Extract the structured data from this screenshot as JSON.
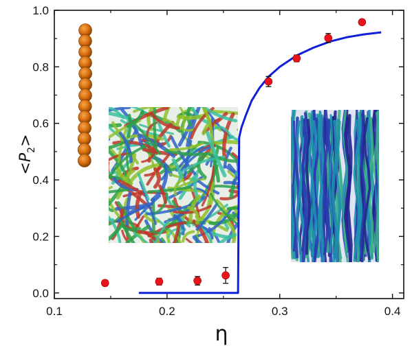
{
  "chart_data": {
    "type": "scatter",
    "xlabel": "η",
    "ylabel_main": "<P",
    "ylabel_sub": "2",
    "ylabel_close": ">",
    "xlim": [
      0.1,
      0.41
    ],
    "ylim": [
      -0.02,
      1.0
    ],
    "x_ticks": [
      0.1,
      0.2,
      0.3,
      0.4
    ],
    "x_tick_labels": [
      "0.1",
      "0.2",
      "0.3",
      "0.4"
    ],
    "y_ticks": [
      0.0,
      0.2,
      0.4,
      0.6,
      0.8,
      1.0
    ],
    "y_tick_labels": [
      "0.0",
      "0.2",
      "0.4",
      "0.6",
      "0.8",
      "1.0"
    ],
    "series": [
      {
        "kind": "points-with-errorbars",
        "color": "#e8141b",
        "x": [
          0.145,
          0.193,
          0.227,
          0.252,
          0.29,
          0.315,
          0.343,
          0.373
        ],
        "y": [
          0.035,
          0.04,
          0.043,
          0.062,
          0.748,
          0.83,
          0.902,
          0.958
        ],
        "yerr": [
          0.01,
          0.012,
          0.015,
          0.028,
          0.018,
          0.012,
          0.016,
          0.008
        ]
      },
      {
        "kind": "line",
        "color": "#1020d8",
        "x": [
          0.175,
          0.2,
          0.23,
          0.263,
          0.264,
          0.266,
          0.27,
          0.275,
          0.282,
          0.29,
          0.3,
          0.315,
          0.33,
          0.345,
          0.36,
          0.375,
          0.39
        ],
        "y": [
          0.0,
          0.0,
          0.0,
          0.0,
          0.55,
          0.585,
          0.63,
          0.68,
          0.725,
          0.765,
          0.8,
          0.84,
          0.868,
          0.89,
          0.905,
          0.915,
          0.922
        ]
      }
    ],
    "insets": [
      {
        "name": "bead-chain",
        "color": "#d9700f",
        "beads": 13
      },
      {
        "name": "isotropic-configuration",
        "colors": [
          "#2aa04a",
          "#c0362a",
          "#2f63c8",
          "#3bbfa0",
          "#8fbf2a"
        ]
      },
      {
        "name": "nematic-configuration",
        "colors": [
          "#2a3cb0",
          "#1f8fb0",
          "#3fb08a",
          "#24268f"
        ]
      }
    ]
  }
}
